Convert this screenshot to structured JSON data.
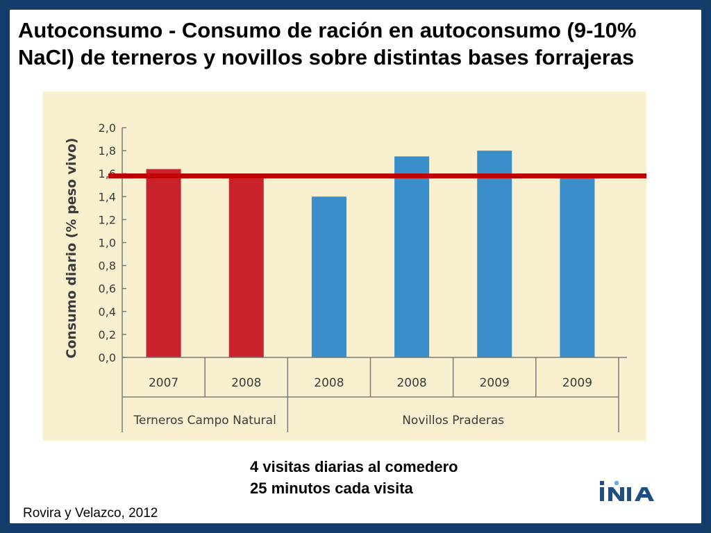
{
  "title": {
    "line1": "Autoconsumo - Consumo de ración en autoconsumo (9-10%",
    "line2": "NaCl) de terneros y novillos sobre distintas bases forrajeras"
  },
  "chart_data": {
    "type": "bar",
    "title": "",
    "xlabel": "",
    "ylabel": "Consumo diario (% peso vivo)",
    "ylim": [
      0,
      2.0
    ],
    "yticks": [
      "0,0",
      "0,2",
      "0,4",
      "0,6",
      "0,8",
      "1,0",
      "1,2",
      "1,4",
      "1,6",
      "1,8",
      "2,0"
    ],
    "categories": [
      "2007",
      "2008",
      "2008",
      "2008",
      "2009",
      "2009"
    ],
    "values": [
      1.64,
      1.58,
      1.4,
      1.75,
      1.8,
      1.58
    ],
    "groups": [
      {
        "label": "Terneros Campo Natural",
        "count": 2,
        "color": "#c8232c"
      },
      {
        "label": "Novillos Praderas",
        "count": 4,
        "color": "#3a8fcb"
      }
    ],
    "reference_line": {
      "value": 1.58,
      "color": "#c00000"
    },
    "grid": false
  },
  "notes": {
    "line1": "4 visitas diarias al comedero",
    "line2": "25 minutos cada visita"
  },
  "source": "Rovira y Velazco, 2012",
  "logo": {
    "text": "INIA",
    "color": "#1f4f82"
  }
}
